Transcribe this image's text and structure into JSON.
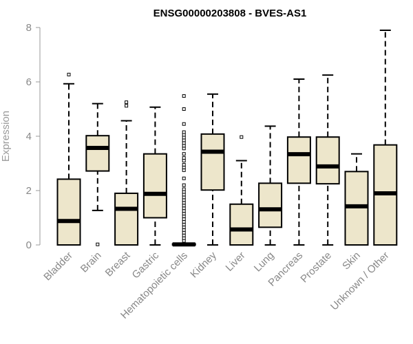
{
  "chart_data": {
    "type": "box",
    "title": "ENSG00000203808 - BVES-AS1",
    "ylabel": "Expression",
    "xlabel": "",
    "ylim": [
      0,
      8
    ],
    "yticks": [
      0,
      2,
      4,
      6,
      8
    ],
    "box_fill": "#ede6cb",
    "categories": [
      "Bladder",
      "Brain",
      "Breast",
      "Gastric",
      "Hematopoietic cells",
      "Kidney",
      "Liver",
      "Lung",
      "Pancreas",
      "Prostate",
      "Skin",
      "Unknown / Other"
    ],
    "boxes": [
      {
        "whisker_low": 0,
        "q1": 0,
        "median": 0.88,
        "q3": 2.42,
        "whisker_high": 5.93,
        "outliers": [
          6.27
        ]
      },
      {
        "whisker_low": 1.27,
        "q1": 2.72,
        "median": 3.57,
        "q3": 4.02,
        "whisker_high": 5.2,
        "outliers": [
          0.02
        ]
      },
      {
        "whisker_low": 0,
        "q1": 0,
        "median": 1.33,
        "q3": 1.9,
        "whisker_high": 4.57,
        "outliers": [
          5.12,
          5.25
        ]
      },
      {
        "whisker_low": 0,
        "q1": 1.0,
        "median": 1.88,
        "q3": 3.35,
        "whisker_high": 5.07,
        "outliers": []
      },
      {
        "whisker_low": 0,
        "q1": 0,
        "median": 0.02,
        "q3": 0.04,
        "whisker_high": 0.06,
        "outliers": [
          0.15,
          0.25,
          0.35,
          0.45,
          0.55,
          0.65,
          0.75,
          0.85,
          0.95,
          1.05,
          1.15,
          1.25,
          1.35,
          1.45,
          1.55,
          1.65,
          1.75,
          1.85,
          1.95,
          2.05,
          2.2,
          2.45,
          2.75,
          2.85,
          2.95,
          3.1,
          3.2,
          3.35,
          3.55,
          3.65,
          3.75,
          3.85,
          3.95,
          4.05,
          4.15,
          4.45,
          5.0,
          5.48
        ]
      },
      {
        "whisker_low": 0,
        "q1": 2.02,
        "median": 3.43,
        "q3": 4.08,
        "whisker_high": 5.55,
        "outliers": []
      },
      {
        "whisker_low": 0,
        "q1": 0,
        "median": 0.57,
        "q3": 1.5,
        "whisker_high": 3.1,
        "outliers": [
          3.97
        ]
      },
      {
        "whisker_low": 0,
        "q1": 0.65,
        "median": 1.31,
        "q3": 2.27,
        "whisker_high": 4.37,
        "outliers": []
      },
      {
        "whisker_low": 0,
        "q1": 2.27,
        "median": 3.34,
        "q3": 3.97,
        "whisker_high": 6.1,
        "outliers": []
      },
      {
        "whisker_low": 0,
        "q1": 2.25,
        "median": 2.89,
        "q3": 3.97,
        "whisker_high": 6.25,
        "outliers": []
      },
      {
        "whisker_low": 0,
        "q1": 0,
        "median": 1.42,
        "q3": 2.7,
        "whisker_high": 3.35,
        "outliers": []
      },
      {
        "whisker_low": 0,
        "q1": 0,
        "median": 1.9,
        "q3": 3.68,
        "whisker_high": 7.9,
        "outliers": []
      }
    ]
  }
}
